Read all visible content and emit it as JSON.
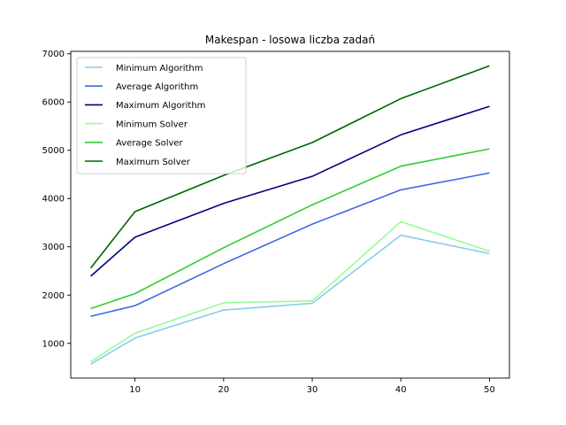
{
  "chart_data": {
    "type": "line",
    "title": "Makespan - losowa liczba zadań",
    "xlabel": "",
    "ylabel": "",
    "x": [
      5,
      10,
      20,
      30,
      40,
      50
    ],
    "xlim": [
      2.75,
      52.25
    ],
    "ylim": [
      280,
      7050
    ],
    "xticks": [
      10,
      20,
      30,
      40,
      50
    ],
    "yticks": [
      1000,
      2000,
      3000,
      4000,
      5000,
      6000,
      7000
    ],
    "grid": false,
    "legend_position": "upper-left",
    "series": [
      {
        "name": "Minimum Algorithm",
        "color": "#87ceeb",
        "values": [
          570,
          1110,
          1690,
          1830,
          3240,
          2860
        ]
      },
      {
        "name": "Average Algorithm",
        "color": "#4169e1",
        "values": [
          1560,
          1780,
          2650,
          3470,
          4180,
          4530
        ]
      },
      {
        "name": "Maximum Algorithm",
        "color": "#000080",
        "values": [
          2390,
          3200,
          3900,
          4460,
          5320,
          5910
        ]
      },
      {
        "name": "Minimum Solver",
        "color": "#98fb98",
        "values": [
          620,
          1210,
          1840,
          1880,
          3520,
          2910
        ]
      },
      {
        "name": "Average Solver",
        "color": "#32cd32",
        "values": [
          1720,
          2030,
          2980,
          3870,
          4670,
          5030
        ]
      },
      {
        "name": "Maximum Solver",
        "color": "#006400",
        "values": [
          2560,
          3730,
          4480,
          5160,
          6070,
          6750
        ]
      }
    ]
  }
}
